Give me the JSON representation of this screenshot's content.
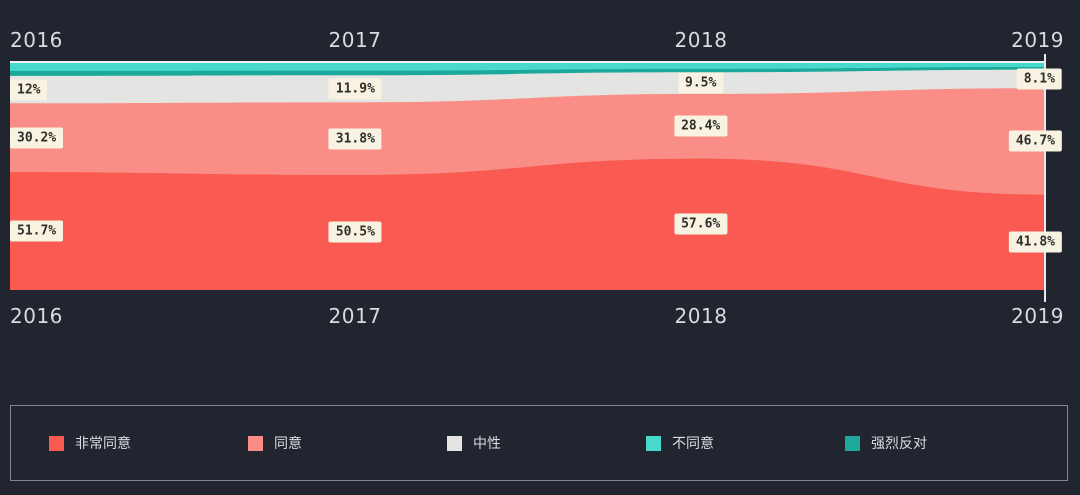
{
  "background": "#20252f",
  "axis": {
    "top_labels": [
      "2016",
      "2017",
      "2018",
      "2019"
    ],
    "bottom_labels": [
      "2016",
      "2017",
      "2018",
      "2019"
    ]
  },
  "chart_data": {
    "type": "area",
    "stacked": true,
    "percentage_stack": true,
    "title": "",
    "xlabel": "",
    "ylabel": "",
    "x": [
      2016,
      2017,
      2018,
      2019
    ],
    "ylim": [
      0,
      100
    ],
    "grid": false,
    "legend_position": "bottom",
    "series": [
      {
        "key": "strongly-agree",
        "name": "非常同意",
        "color": "#f95a52",
        "values": [
          51.7,
          50.5,
          57.6,
          41.8
        ],
        "labels": [
          "51.7%",
          "50.5%",
          "57.6%",
          "41.8%"
        ]
      },
      {
        "key": "agree",
        "name": "同意",
        "color": "#fa8e86",
        "values": [
          30.2,
          31.8,
          28.4,
          46.7
        ],
        "labels": [
          "30.2%",
          "31.8%",
          "28.4%",
          "46.7%"
        ]
      },
      {
        "key": "neutral",
        "name": "中性",
        "color": "#e4e4e2",
        "values": [
          12,
          11.9,
          9.5,
          8.1
        ],
        "labels": [
          "12%",
          "11.9%",
          "9.5%",
          "8.1%"
        ]
      },
      {
        "key": "disagree",
        "name": "不同意",
        "color": "#48d8cc",
        "values": [
          3.9,
          3.8,
          3.0,
          2.2
        ],
        "labels": []
      },
      {
        "key": "strongly-disagree",
        "name": "强烈反对",
        "color": "#1ca99b",
        "values": [
          2.2,
          2.0,
          1.5,
          1.2
        ],
        "labels": []
      }
    ],
    "stack_order_top_to_bottom": [
      "不同意",
      "强烈反对",
      "中性",
      "同意",
      "非常同意"
    ],
    "accents": {
      "axis_line": "#eef0f2",
      "crosshair_line": "#e8ebee",
      "label_bg": "#f8f2e3",
      "label_fg": "#2f2e29"
    }
  }
}
